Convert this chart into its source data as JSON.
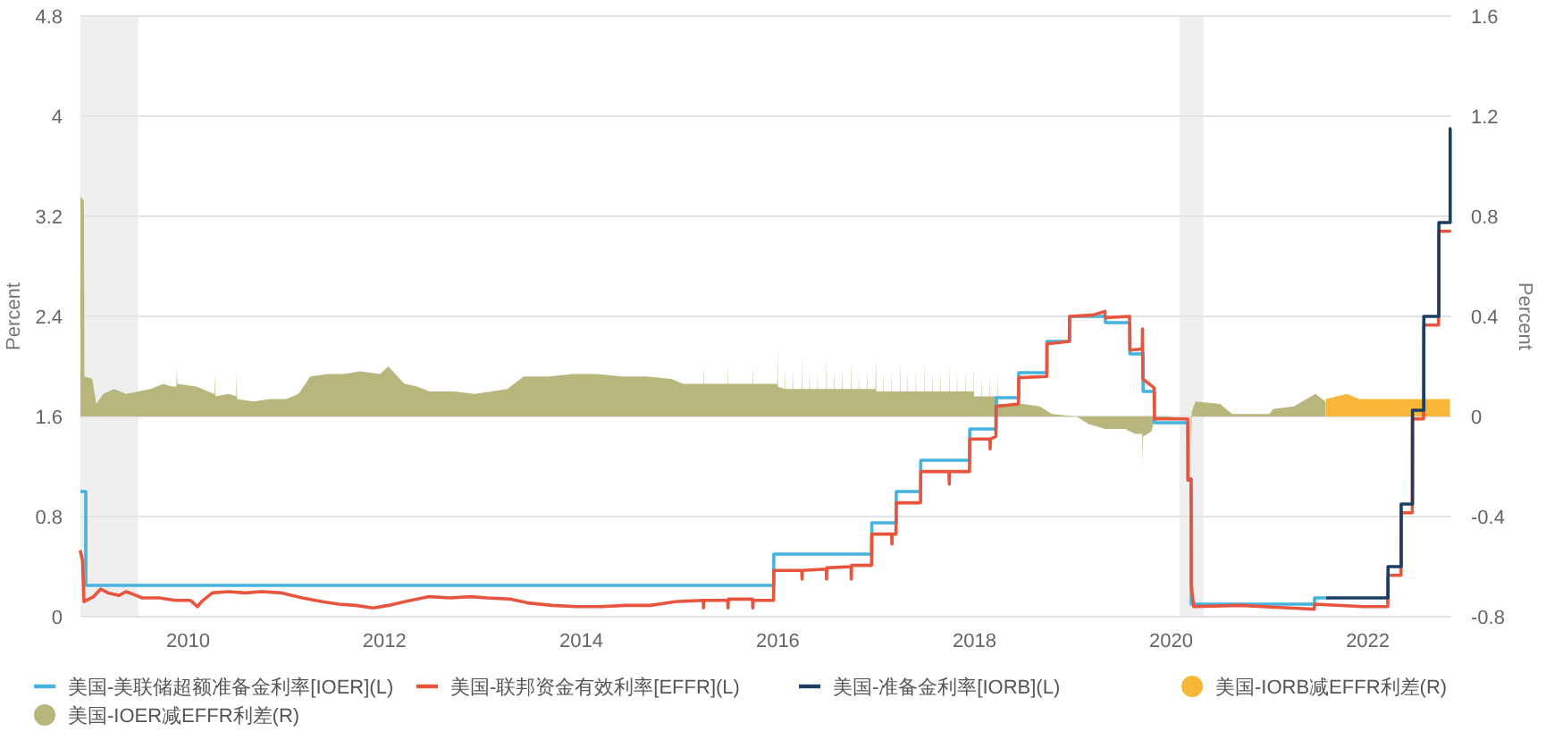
{
  "chart_data": {
    "type": "line",
    "ylabel": "Percent",
    "y2label": "Percent",
    "xlim": [
      "2008-11-27",
      "2022-11-07"
    ],
    "xticks": [
      "2010",
      "2012",
      "2014",
      "2016",
      "2018",
      "2020",
      "2022"
    ],
    "ylim": [
      0,
      4.8
    ],
    "yticks": [
      0,
      0.8,
      1.6,
      2.4,
      3.2,
      4,
      4.8
    ],
    "y2lim": [
      -0.8,
      1.6
    ],
    "y2ticks": [
      -0.8,
      -0.4,
      0,
      0.4,
      0.8,
      1.2,
      1.6
    ],
    "grid": "y",
    "legend": "bottom",
    "bands": [
      {
        "axis": "x",
        "from": "2008-11-27",
        "to": "2009-06-30",
        "color": "#efefef"
      },
      {
        "axis": "x",
        "from": "2020-02-01",
        "to": "2020-04-30",
        "color": "#efefef"
      }
    ],
    "series": [
      {
        "name": "美国-美联储超额准备金利率[IOER](L)",
        "color": "#45b3e0",
        "type": "step",
        "x": [
          "2008-11-27",
          "2008-12-17",
          "2015-12-17",
          "2016-12-15",
          "2017-03-16",
          "2017-06-15",
          "2017-12-14",
          "2018-03-22",
          "2018-06-14",
          "2018-09-27",
          "2018-12-20",
          "2019-05-02",
          "2019-08-01",
          "2019-09-19",
          "2019-10-31",
          "2020-03-04",
          "2020-03-16",
          "2021-06-17",
          "2021-07-28"
        ],
        "values": [
          1.0,
          0.25,
          0.5,
          0.75,
          1.0,
          1.25,
          1.5,
          1.75,
          1.95,
          2.2,
          2.4,
          2.35,
          2.1,
          1.8,
          1.55,
          1.1,
          0.1,
          0.15,
          0.15
        ]
      },
      {
        "name": "美国-联邦资金有效利率[EFFR](L)",
        "color": "#e8553e",
        "type": "line",
        "x": [
          "2008-11-27",
          "2008-12-05",
          "2008-12-10",
          "2009-01-15",
          "2009-02-10",
          "2009-03-10",
          "2009-04-20",
          "2009-05-15",
          "2009-06-10",
          "2009-07-15",
          "2009-09-15",
          "2009-11-15",
          "2010-01-10",
          "2010-02-05",
          "2010-02-20",
          "2010-04-01",
          "2010-06-01",
          "2010-08-01",
          "2010-10-01",
          "2010-12-15",
          "2011-03-01",
          "2011-05-15",
          "2011-07-15",
          "2011-09-15",
          "2011-11-20",
          "2012-01-15",
          "2012-03-15",
          "2012-06-15",
          "2012-09-01",
          "2012-11-15",
          "2013-01-15",
          "2013-04-15",
          "2013-06-15",
          "2013-09-15",
          "2013-12-15",
          "2014-03-15",
          "2014-06-15",
          "2014-09-15",
          "2014-12-15",
          "2015-03-30",
          "2015-03-31",
          "2015-04-01",
          "2015-06-29",
          "2015-06-30",
          "2015-07-01",
          "2015-09-29",
          "2015-09-30",
          "2015-10-01",
          "2015-12-16",
          "2015-12-17",
          "2016-03-30",
          "2016-03-31",
          "2016-04-01",
          "2016-06-29",
          "2016-06-30",
          "2016-07-01",
          "2016-09-29",
          "2016-09-30",
          "2016-10-01",
          "2016-12-14",
          "2016-12-15",
          "2017-02-27",
          "2017-02-28",
          "2017-03-01",
          "2017-03-15",
          "2017-03-16",
          "2017-06-14",
          "2017-06-15",
          "2017-09-28",
          "2017-09-29",
          "2017-09-30",
          "2017-12-13",
          "2017-12-14",
          "2018-02-27",
          "2018-02-28",
          "2018-03-01",
          "2018-03-21",
          "2018-03-22",
          "2018-06-13",
          "2018-06-14",
          "2018-09-26",
          "2018-09-27",
          "2018-12-19",
          "2018-12-20",
          "2019-03-15",
          "2019-04-30",
          "2019-05-01",
          "2019-07-31",
          "2019-08-01",
          "2019-09-16",
          "2019-09-17",
          "2019-09-18",
          "2019-10-30",
          "2019-10-31",
          "2020-03-03",
          "2020-03-04",
          "2020-03-15",
          "2020-03-16",
          "2020-03-25",
          "2020-09-15",
          "2021-03-15",
          "2021-06-16",
          "2021-06-17",
          "2021-12-15",
          "2022-03-16",
          "2022-03-17",
          "2022-05-04",
          "2022-05-05",
          "2022-06-15",
          "2022-06-16",
          "2022-07-27",
          "2022-07-28",
          "2022-09-21",
          "2022-09-22",
          "2022-11-02"
        ],
        "values": [
          0.52,
          0.45,
          0.12,
          0.16,
          0.22,
          0.19,
          0.17,
          0.2,
          0.18,
          0.15,
          0.15,
          0.13,
          0.13,
          0.08,
          0.12,
          0.19,
          0.2,
          0.19,
          0.2,
          0.19,
          0.15,
          0.12,
          0.1,
          0.09,
          0.07,
          0.09,
          0.12,
          0.16,
          0.15,
          0.16,
          0.15,
          0.14,
          0.11,
          0.09,
          0.08,
          0.08,
          0.09,
          0.09,
          0.12,
          0.13,
          0.07,
          0.13,
          0.13,
          0.07,
          0.14,
          0.14,
          0.07,
          0.13,
          0.13,
          0.37,
          0.37,
          0.3,
          0.37,
          0.38,
          0.3,
          0.39,
          0.4,
          0.3,
          0.41,
          0.41,
          0.66,
          0.66,
          0.58,
          0.66,
          0.66,
          0.91,
          0.91,
          1.16,
          1.16,
          1.06,
          1.16,
          1.16,
          1.42,
          1.42,
          1.34,
          1.42,
          1.44,
          1.68,
          1.7,
          1.91,
          1.92,
          2.18,
          2.2,
          2.4,
          2.41,
          2.44,
          2.39,
          2.4,
          2.13,
          2.14,
          2.3,
          1.9,
          1.83,
          1.58,
          1.58,
          1.09,
          1.1,
          0.25,
          0.08,
          0.09,
          0.07,
          0.06,
          0.1,
          0.08,
          0.08,
          0.33,
          0.33,
          0.83,
          0.83,
          1.58,
          1.58,
          2.33,
          2.33,
          3.08,
          3.08
        ]
      },
      {
        "name": "美国-准备金利率[IORB](L)",
        "color": "#1d3e63",
        "type": "step",
        "x": [
          "2021-07-29",
          "2022-03-17",
          "2022-05-05",
          "2022-06-16",
          "2022-07-28",
          "2022-09-22",
          "2022-11-03",
          "2022-11-07"
        ],
        "values": [
          0.15,
          0.4,
          0.9,
          1.65,
          2.4,
          3.15,
          3.9,
          3.9
        ]
      },
      {
        "name": "美国-IORB减EFFR利差(R)",
        "color": "#f6b738",
        "type": "area",
        "axis": "y2",
        "x": [
          "2021-07-29",
          "2021-10-15",
          "2021-12-01",
          "2022-11-02"
        ],
        "values": [
          0.07,
          0.09,
          0.07,
          0.07
        ]
      },
      {
        "name": "美国-IOER减EFFR利差(R)",
        "color": "#b7b77d",
        "type": "area",
        "axis": "y2",
        "x": [
          "2008-11-27",
          "2008-12-10",
          "2008-12-12",
          "2009-01-10",
          "2009-01-25",
          "2009-02-20",
          "2009-04-01",
          "2009-05-15",
          "2009-06-30",
          "2009-08-15",
          "2009-10-01",
          "2009-11-01",
          "2009-11-19",
          "2009-11-20",
          "2009-11-22",
          "2010-02-01",
          "2010-03-15",
          "2010-04-09",
          "2010-04-10",
          "2010-04-12",
          "2010-06-01",
          "2010-06-29",
          "2010-06-30",
          "2010-07-02",
          "2010-09-01",
          "2010-11-01",
          "2011-01-01",
          "2011-02-15",
          "2011-03-31",
          "2011-06-01",
          "2011-08-01",
          "2011-10-01",
          "2011-12-15",
          "2012-01-15",
          "2012-03-15",
          "2012-05-01",
          "2012-06-15",
          "2012-09-15",
          "2012-12-01",
          "2013-02-01",
          "2013-04-01",
          "2013-06-01",
          "2013-09-01",
          "2013-12-01",
          "2014-03-01",
          "2014-06-01",
          "2014-09-01",
          "2014-12-01",
          "2015-01-15",
          "2015-03-30",
          "2015-03-31",
          "2015-04-01",
          "2015-06-29",
          "2015-06-30",
          "2015-07-01",
          "2015-09-29",
          "2015-09-30",
          "2015-10-01",
          "2015-12-30",
          "2015-12-31",
          "2016-01-01",
          "2016-01-27",
          "2016-01-28",
          "2016-01-29",
          "2016-02-26",
          "2016-02-27",
          "2016-02-28",
          "2016-03-30",
          "2016-03-31",
          "2016-04-01",
          "2016-04-27",
          "2016-04-28",
          "2016-04-29",
          "2016-05-27",
          "2016-05-28",
          "2016-05-29",
          "2016-06-29",
          "2016-06-30",
          "2016-07-01",
          "2016-07-27",
          "2016-07-28",
          "2016-07-29",
          "2016-08-27",
          "2016-08-28",
          "2016-08-29",
          "2016-09-29",
          "2016-09-30",
          "2016-10-01",
          "2016-10-27",
          "2016-10-28",
          "2016-10-29",
          "2016-11-27",
          "2016-11-28",
          "2016-11-29",
          "2016-12-29",
          "2016-12-30",
          "2017-01-01",
          "2017-01-27",
          "2017-01-28",
          "2017-01-29",
          "2017-02-26",
          "2017-02-27",
          "2017-02-28",
          "2017-03-30",
          "2017-03-31",
          "2017-04-01",
          "2017-04-27",
          "2017-04-28",
          "2017-04-29",
          "2017-05-27",
          "2017-05-28",
          "2017-05-29",
          "2017-06-29",
          "2017-06-30",
          "2017-07-01",
          "2017-07-27",
          "2017-07-28",
          "2017-07-29",
          "2017-08-27",
          "2017-08-28",
          "2017-08-29",
          "2017-09-28",
          "2017-09-29",
          "2017-09-30",
          "2017-10-27",
          "2017-10-28",
          "2017-10-29",
          "2017-11-27",
          "2017-11-28",
          "2017-11-29",
          "2017-12-28",
          "2017-12-29",
          "2017-12-30",
          "2018-01-27",
          "2018-01-28",
          "2018-01-29",
          "2018-02-26",
          "2018-02-27",
          "2018-02-28",
          "2018-03-28",
          "2018-03-29",
          "2018-03-30",
          "2018-07-01",
          "2018-09-01",
          "2018-10-15",
          "2019-01-15",
          "2019-03-01",
          "2019-05-01",
          "2019-07-15",
          "2019-08-20",
          "2019-09-16",
          "2019-09-17",
          "2019-09-19",
          "2019-10-20",
          "2019-11-01",
          "2020-01-15",
          "2020-03-14",
          "2020-03-16",
          "2020-03-18",
          "2020-04-01",
          "2020-07-01",
          "2020-08-15",
          "2020-12-31",
          "2021-01-15",
          "2021-04-01",
          "2021-06-20",
          "2021-07-28"
        ],
        "values": [
          0.88,
          0.86,
          0.16,
          0.15,
          0.05,
          0.09,
          0.11,
          0.09,
          0.1,
          0.11,
          0.13,
          0.12,
          0.12,
          0.2,
          0.13,
          0.12,
          0.1,
          0.09,
          0.18,
          0.08,
          0.09,
          0.08,
          0.17,
          0.07,
          0.06,
          0.07,
          0.07,
          0.09,
          0.16,
          0.17,
          0.17,
          0.18,
          0.17,
          0.2,
          0.13,
          0.12,
          0.1,
          0.1,
          0.09,
          0.1,
          0.11,
          0.16,
          0.16,
          0.17,
          0.17,
          0.16,
          0.16,
          0.15,
          0.13,
          0.13,
          0.2,
          0.13,
          0.13,
          0.2,
          0.13,
          0.13,
          0.2,
          0.13,
          0.13,
          0.29,
          0.12,
          0.11,
          0.19,
          0.11,
          0.11,
          0.19,
          0.11,
          0.11,
          0.24,
          0.11,
          0.11,
          0.19,
          0.11,
          0.11,
          0.19,
          0.11,
          0.11,
          0.24,
          0.11,
          0.11,
          0.19,
          0.11,
          0.11,
          0.19,
          0.11,
          0.11,
          0.23,
          0.11,
          0.11,
          0.19,
          0.11,
          0.11,
          0.19,
          0.11,
          0.11,
          0.24,
          0.1,
          0.1,
          0.18,
          0.1,
          0.1,
          0.18,
          0.1,
          0.1,
          0.23,
          0.1,
          0.1,
          0.18,
          0.1,
          0.1,
          0.18,
          0.1,
          0.1,
          0.22,
          0.1,
          0.1,
          0.18,
          0.1,
          0.1,
          0.18,
          0.1,
          0.1,
          0.21,
          0.1,
          0.1,
          0.18,
          0.1,
          0.1,
          0.18,
          0.1,
          0.1,
          0.2,
          0.08,
          0.08,
          0.16,
          0.08,
          0.08,
          0.16,
          0.08,
          0.08,
          0.18,
          0.05,
          0.05,
          0.04,
          0.01,
          0.0,
          -0.03,
          -0.05,
          -0.05,
          -0.07,
          -0.07,
          -0.19,
          -0.08,
          -0.06,
          -0.01,
          0.0,
          0.0,
          -0.14,
          0.02,
          0.06,
          0.05,
          0.01,
          0.01,
          0.03,
          0.04,
          0.09,
          0.06
        ]
      }
    ]
  }
}
